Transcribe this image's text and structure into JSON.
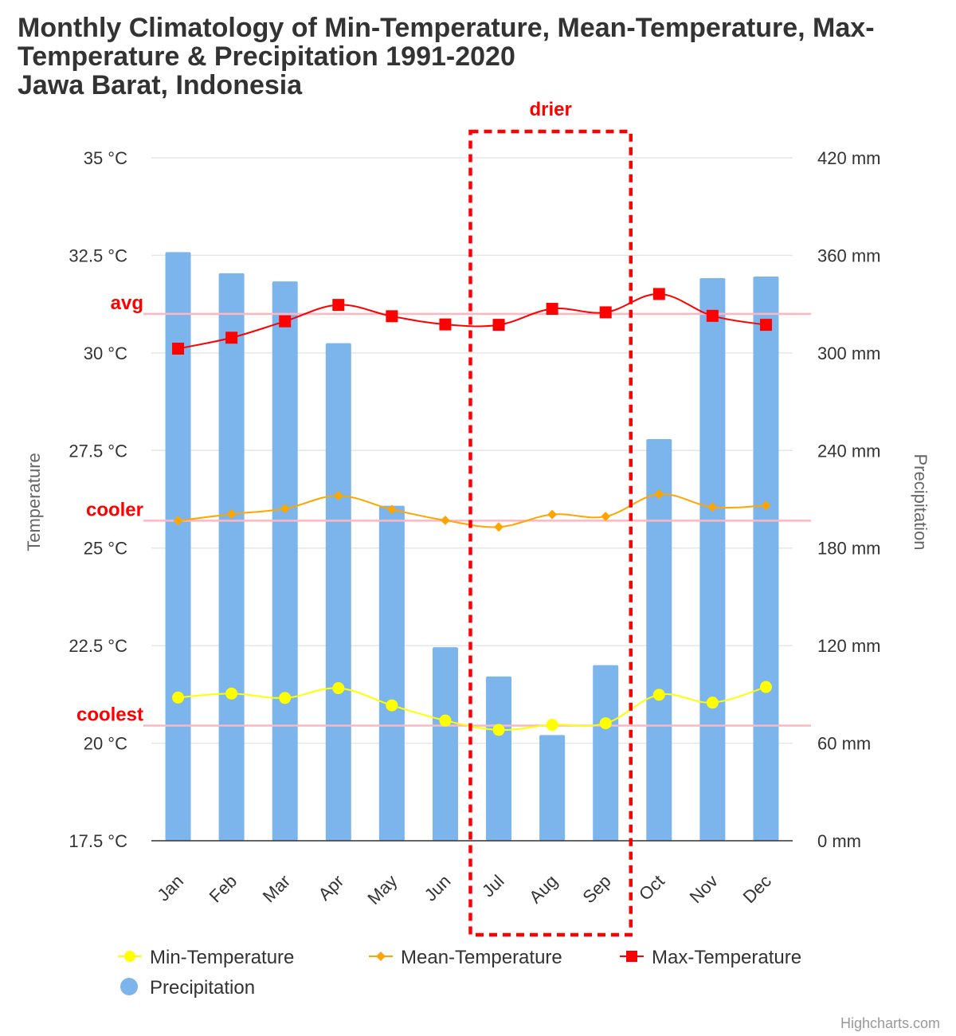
{
  "chart_data": {
    "type": "bar",
    "title": [
      "Monthly Climatology of Min-Temperature, Mean-Temperature, Max-",
      "Temperature & Precipitation 1991-2020",
      "Jawa Barat, Indonesia"
    ],
    "categories": [
      "Jan",
      "Feb",
      "Mar",
      "Apr",
      "May",
      "Jun",
      "Jul",
      "Aug",
      "Sep",
      "Oct",
      "Nov",
      "Dec"
    ],
    "y_left": {
      "label": "Temperature",
      "unit": "°C",
      "range": [
        17.5,
        35
      ],
      "ticks": [
        "17.5 °C",
        "20 °C",
        "22.5 °C",
        "25 °C",
        "27.5 °C",
        "30 °C",
        "32.5 °C",
        "35 °C"
      ]
    },
    "y_right": {
      "label": "Precipitation",
      "unit": "mm",
      "range": [
        0,
        420
      ],
      "ticks": [
        "0 mm",
        "60 mm",
        "120 mm",
        "180 mm",
        "240 mm",
        "300 mm",
        "360 mm",
        "420 mm"
      ]
    },
    "series": [
      {
        "name": "Precipitation",
        "type": "column",
        "axis": "right",
        "color": "#7cb5ec",
        "values": [
          362,
          349,
          344,
          306,
          206,
          119,
          101,
          65,
          108,
          247,
          346,
          347
        ]
      },
      {
        "name": "Min-Temperature",
        "type": "spline",
        "axis": "left",
        "color": "#ffff00",
        "marker": "circle",
        "values": [
          21.17,
          21.27,
          21.16,
          21.41,
          20.97,
          20.58,
          20.34,
          20.47,
          20.51,
          21.24,
          21.04,
          21.44
        ]
      },
      {
        "name": "Mean-Temperature",
        "type": "spline",
        "axis": "left",
        "color": "#ffa500",
        "marker": "diamond",
        "values": [
          25.7,
          25.87,
          26.01,
          26.34,
          25.99,
          25.71,
          25.54,
          25.86,
          25.81,
          26.38,
          26.05,
          26.09
        ]
      },
      {
        "name": "Max-Temperature",
        "type": "spline",
        "axis": "left",
        "color": "#ff0000",
        "marker": "square",
        "values": [
          30.11,
          30.39,
          30.81,
          31.23,
          30.94,
          30.73,
          30.72,
          31.13,
          31.04,
          31.51,
          30.95,
          30.72
        ]
      }
    ],
    "plot_lines": [
      {
        "label": "avg",
        "value": 31.0,
        "color": "#ffb6c1"
      },
      {
        "label": "cooler",
        "value": 25.7,
        "color": "#ffb6c1"
      },
      {
        "label": "coolest",
        "value": 20.45,
        "color": "#ffb6c1"
      }
    ],
    "highlight_box": {
      "label": "drier",
      "from_category": "Jul",
      "to_category": "Sep",
      "color": "#ff0000"
    },
    "legend": {
      "placement": "bottom",
      "items": [
        "Min-Temperature",
        "Mean-Temperature",
        "Max-Temperature",
        "Precipitation"
      ]
    },
    "grid": true,
    "credits": "Highcharts.com"
  }
}
